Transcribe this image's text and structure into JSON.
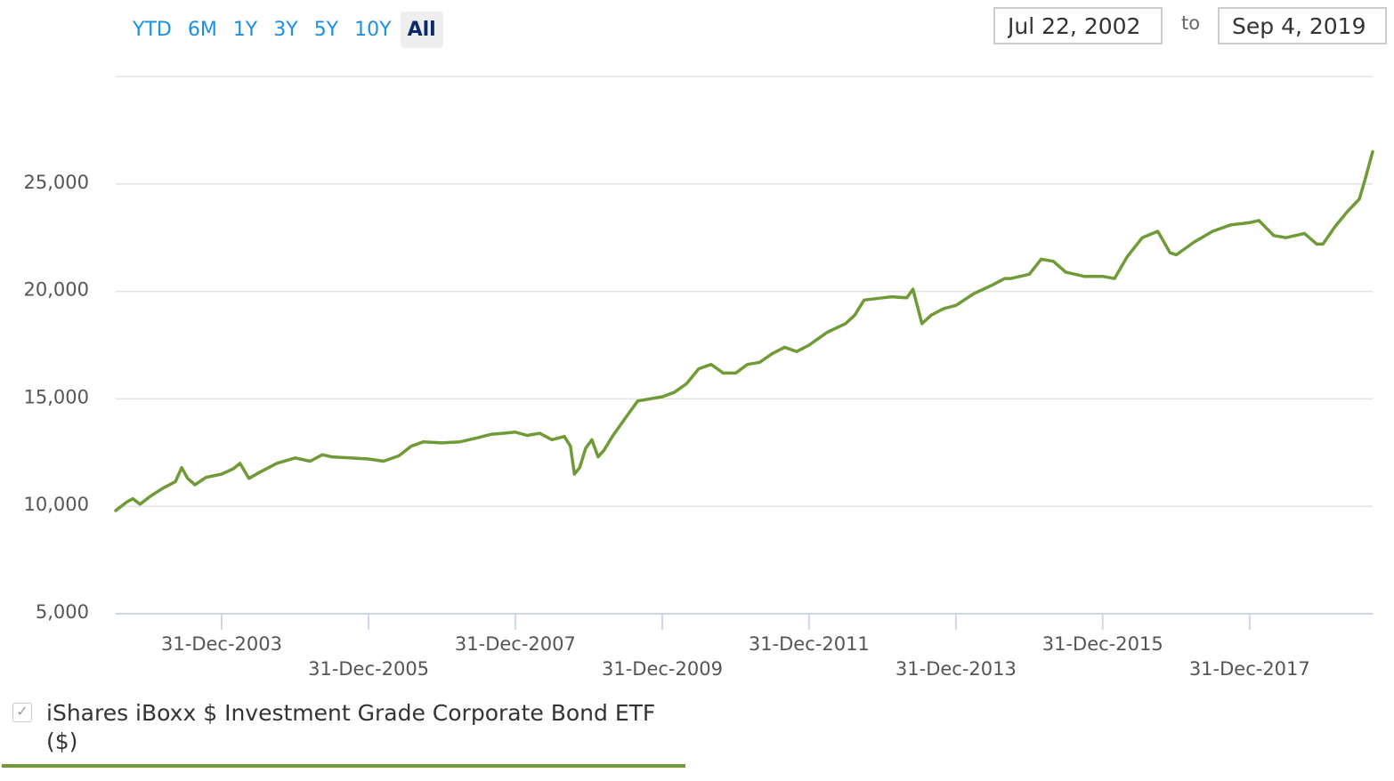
{
  "range_buttons": [
    {
      "label": "YTD",
      "active": false
    },
    {
      "label": "6M",
      "active": false
    },
    {
      "label": "1Y",
      "active": false
    },
    {
      "label": "3Y",
      "active": false
    },
    {
      "label": "5Y",
      "active": false
    },
    {
      "label": "10Y",
      "active": false
    },
    {
      "label": "All",
      "active": true
    }
  ],
  "date_range": {
    "from": "Jul 22, 2002",
    "to_label": "to",
    "to": "Sep 4, 2019"
  },
  "legend": {
    "label": "iShares iBoxx $ Investment Grade Corporate Bond ETF ($)",
    "checked": true,
    "check_glyph": "✓"
  },
  "colors": {
    "series": "#6f9a35",
    "grid": "#e3e3e3",
    "axis": "#ccd6eb",
    "range_active": "#0a2a6b",
    "range": "#1a8fe3"
  },
  "chart_data": {
    "type": "line",
    "title": "",
    "xlabel": "",
    "ylabel": "",
    "x_range": [
      "2002-07-22",
      "2019-09-04"
    ],
    "ylim": [
      5000,
      30000
    ],
    "yticks": [
      5000,
      10000,
      15000,
      20000,
      25000
    ],
    "ytick_labels": [
      "5,000",
      "10,000",
      "15,000",
      "20,000",
      "25,000"
    ],
    "xticks": [
      "2003-12-31",
      "2005-12-31",
      "2007-12-31",
      "2009-12-31",
      "2011-12-31",
      "2013-12-31",
      "2015-12-31",
      "2017-12-31"
    ],
    "xtick_labels": [
      "31-Dec-2003",
      "31-Dec-2005",
      "31-Dec-2007",
      "31-Dec-2009",
      "31-Dec-2011",
      "31-Dec-2013",
      "31-Dec-2015",
      "31-Dec-2017"
    ],
    "grid": true,
    "legend_position": "bottom-left",
    "series": [
      {
        "name": "iShares iBoxx $ Investment Grade Corporate Bond ETF ($)",
        "x": [
          "2002-07-22",
          "2002-09-15",
          "2002-10-15",
          "2002-11-20",
          "2003-01-15",
          "2003-03-15",
          "2003-05-15",
          "2003-06-15",
          "2003-07-15",
          "2003-08-20",
          "2003-10-15",
          "2003-12-31",
          "2004-02-28",
          "2004-03-31",
          "2004-05-15",
          "2004-06-30",
          "2004-09-30",
          "2004-12-31",
          "2005-03-15",
          "2005-05-15",
          "2005-06-30",
          "2005-09-30",
          "2005-12-31",
          "2006-03-15",
          "2006-05-31",
          "2006-07-31",
          "2006-09-30",
          "2006-12-31",
          "2007-03-31",
          "2007-06-30",
          "2007-08-31",
          "2007-10-31",
          "2007-12-31",
          "2008-02-28",
          "2008-04-30",
          "2008-06-30",
          "2008-08-31",
          "2008-09-30",
          "2008-10-20",
          "2008-11-15",
          "2008-12-15",
          "2009-01-15",
          "2009-02-15",
          "2009-03-15",
          "2009-04-30",
          "2009-06-30",
          "2009-08-31",
          "2009-10-31",
          "2009-12-31",
          "2010-02-28",
          "2010-04-30",
          "2010-06-30",
          "2010-08-31",
          "2010-10-31",
          "2010-12-31",
          "2011-02-28",
          "2011-04-30",
          "2011-06-30",
          "2011-08-31",
          "2011-10-31",
          "2011-12-31",
          "2012-03-31",
          "2012-06-30",
          "2012-08-15",
          "2012-09-30",
          "2012-12-31",
          "2013-02-15",
          "2013-04-30",
          "2013-05-31",
          "2013-07-15",
          "2013-08-31",
          "2013-10-31",
          "2013-12-31",
          "2014-03-31",
          "2014-06-30",
          "2014-08-31",
          "2014-09-30",
          "2014-12-31",
          "2015-02-28",
          "2015-04-30",
          "2015-06-30",
          "2015-09-30",
          "2015-12-31",
          "2016-02-28",
          "2016-04-30",
          "2016-07-15",
          "2016-09-30",
          "2016-11-30",
          "2016-12-31",
          "2017-03-31",
          "2017-06-30",
          "2017-09-30",
          "2017-12-31",
          "2018-02-15",
          "2018-04-30",
          "2018-06-30",
          "2018-09-30",
          "2018-11-30",
          "2018-12-31",
          "2019-02-28",
          "2019-04-30",
          "2019-06-30",
          "2019-07-31",
          "2019-09-04"
        ],
        "values": [
          9800,
          10200,
          10350,
          10100,
          10500,
          10850,
          11150,
          11800,
          11300,
          11000,
          11350,
          11500,
          11750,
          12000,
          11300,
          11550,
          12000,
          12250,
          12100,
          12400,
          12300,
          12250,
          12200,
          12100,
          12350,
          12800,
          13000,
          12950,
          13000,
          13200,
          13350,
          13400,
          13450,
          13300,
          13400,
          13100,
          13250,
          12800,
          11500,
          11800,
          12700,
          13100,
          12300,
          12600,
          13300,
          14100,
          14900,
          15000,
          15100,
          15300,
          15700,
          16400,
          16600,
          16200,
          16200,
          16600,
          16700,
          17100,
          17400,
          17200,
          17500,
          18100,
          18500,
          18900,
          19600,
          19700,
          19750,
          19700,
          20100,
          18500,
          18900,
          19200,
          19350,
          19900,
          20300,
          20600,
          20600,
          20800,
          21500,
          21400,
          20900,
          20700,
          20700,
          20600,
          21600,
          22500,
          22800,
          21800,
          21700,
          22300,
          22800,
          23100,
          23200,
          23300,
          22600,
          22500,
          22700,
          22200,
          22200,
          23000,
          23700,
          24300,
          25300,
          26500
        ]
      }
    ]
  }
}
